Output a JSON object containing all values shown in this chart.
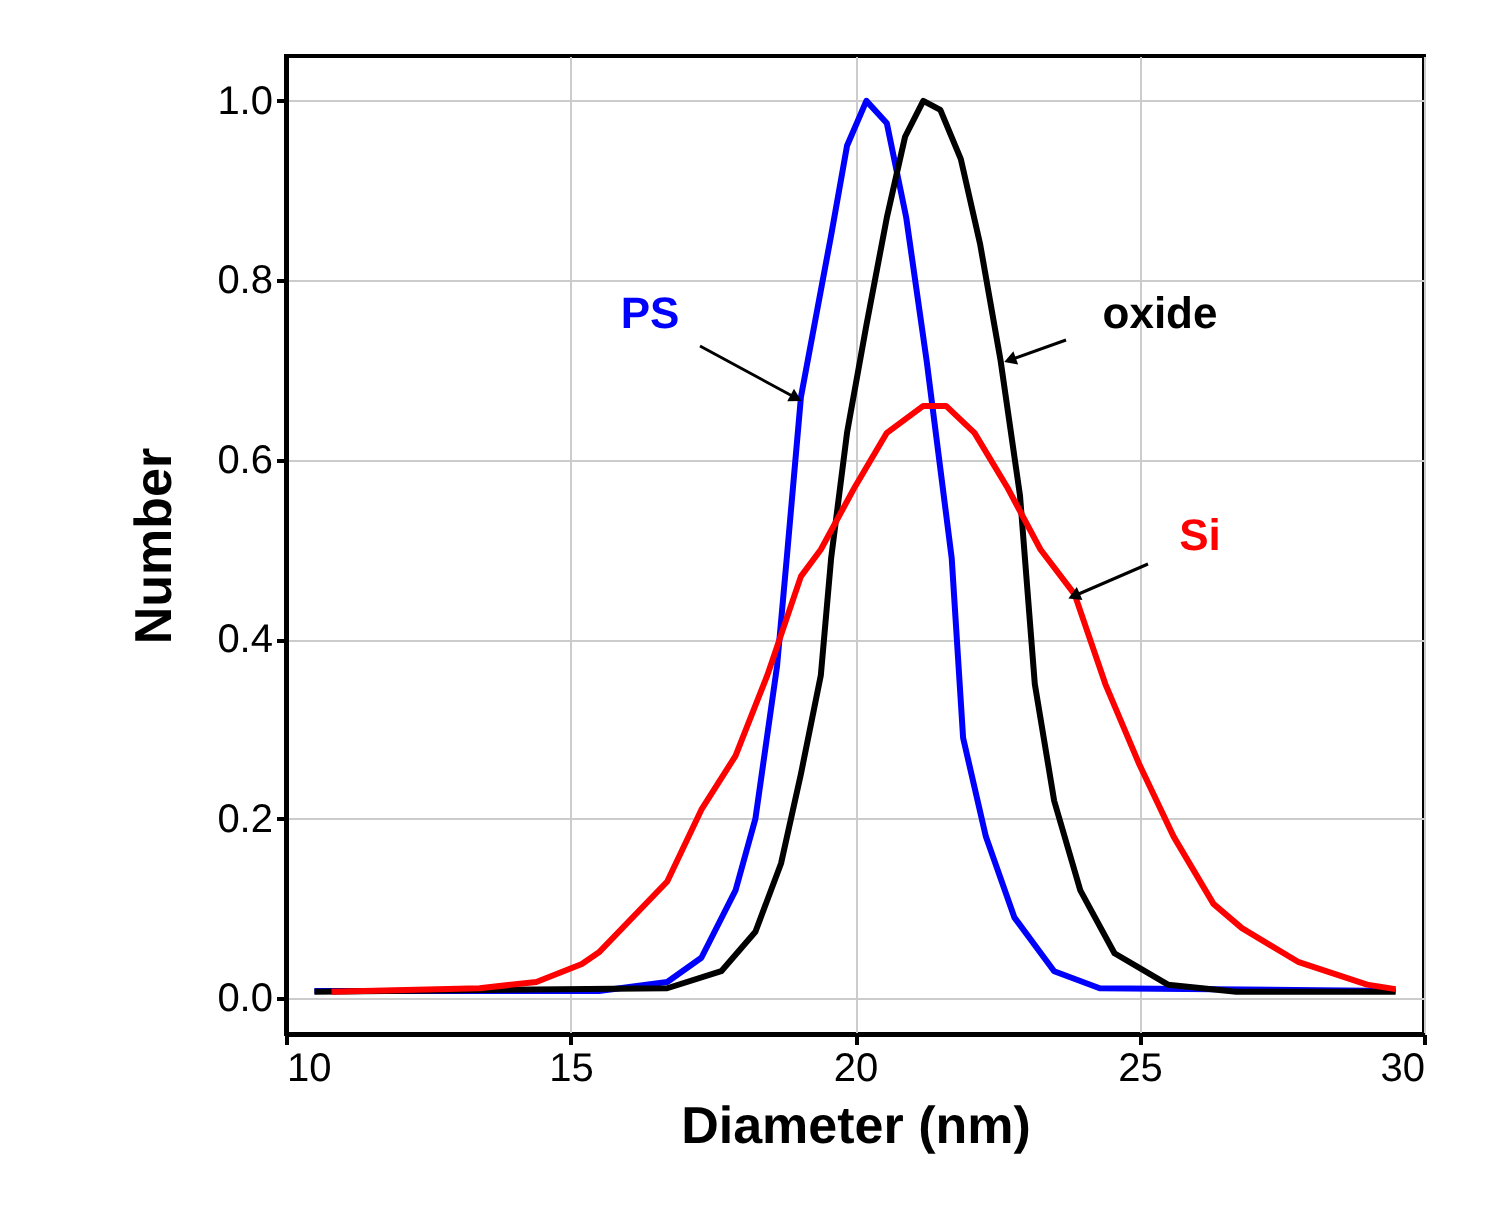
{
  "chart_data": {
    "type": "line",
    "xlabel": "Diameter (nm)",
    "ylabel": "Number",
    "xlim": [
      10,
      30
    ],
    "xticks": [
      10,
      15,
      20,
      25,
      30
    ],
    "ylim": [
      -0.04,
      1.05
    ],
    "yticks": [
      {
        "value": 0,
        "label": "0.0"
      },
      {
        "value": 0.2,
        "label": "0.2"
      },
      {
        "value": 0.4,
        "label": "0.4"
      },
      {
        "value": 0.6,
        "label": "0.6"
      },
      {
        "value": 0.8,
        "label": "0.8"
      },
      {
        "value": 1.0,
        "label": "1.0"
      }
    ],
    "grid": true,
    "legend": false,
    "line_style": "solid",
    "marker": "none",
    "series": [
      {
        "name": "PS",
        "color": "#0000ff",
        "x": [
          10.5,
          15.5,
          16.7,
          17.3,
          17.9,
          18.25,
          18.63,
          18.8,
          19.05,
          19.58,
          19.86,
          20.2,
          20.56,
          20.9,
          21.26,
          21.7,
          21.9,
          22.3,
          22.8,
          23.5,
          24.3,
          29.5
        ],
        "values": [
          0.008,
          0.008,
          0.018,
          0.045,
          0.12,
          0.2,
          0.37,
          0.49,
          0.67,
          0.85,
          0.95,
          1.0,
          0.975,
          0.87,
          0.71,
          0.49,
          0.29,
          0.18,
          0.09,
          0.03,
          0.011,
          0.008
        ]
      },
      {
        "name": "oxide",
        "color": "#000000",
        "x": [
          10.5,
          16.7,
          17.65,
          18.25,
          18.7,
          19.05,
          19.4,
          19.58,
          19.86,
          20.2,
          20.56,
          20.88,
          21.2,
          21.5,
          21.86,
          22.2,
          22.56,
          22.9,
          23.16,
          23.5,
          23.96,
          24.56,
          25.5,
          26.7,
          29.5
        ],
        "values": [
          0.007,
          0.011,
          0.03,
          0.074,
          0.15,
          0.25,
          0.36,
          0.49,
          0.63,
          0.75,
          0.87,
          0.96,
          1.0,
          0.99,
          0.935,
          0.84,
          0.71,
          0.56,
          0.35,
          0.22,
          0.12,
          0.05,
          0.015,
          0.007,
          0.007
        ]
      },
      {
        "name": "Si",
        "color": "#ff0000",
        "x": [
          10.8,
          13.4,
          14.4,
          15.2,
          15.5,
          16.7,
          17.3,
          17.9,
          18.46,
          19.05,
          19.4,
          20.0,
          20.56,
          21.2,
          21.6,
          22.1,
          22.67,
          23.26,
          23.86,
          24.4,
          25.0,
          25.6,
          26.3,
          26.8,
          27.8,
          29.0,
          29.5
        ],
        "values": [
          0.007,
          0.011,
          0.018,
          0.038,
          0.051,
          0.13,
          0.21,
          0.27,
          0.36,
          0.47,
          0.5,
          0.57,
          0.63,
          0.66,
          0.66,
          0.63,
          0.57,
          0.5,
          0.45,
          0.35,
          0.26,
          0.18,
          0.105,
          0.078,
          0.04,
          0.015,
          0.01
        ]
      }
    ]
  }
}
